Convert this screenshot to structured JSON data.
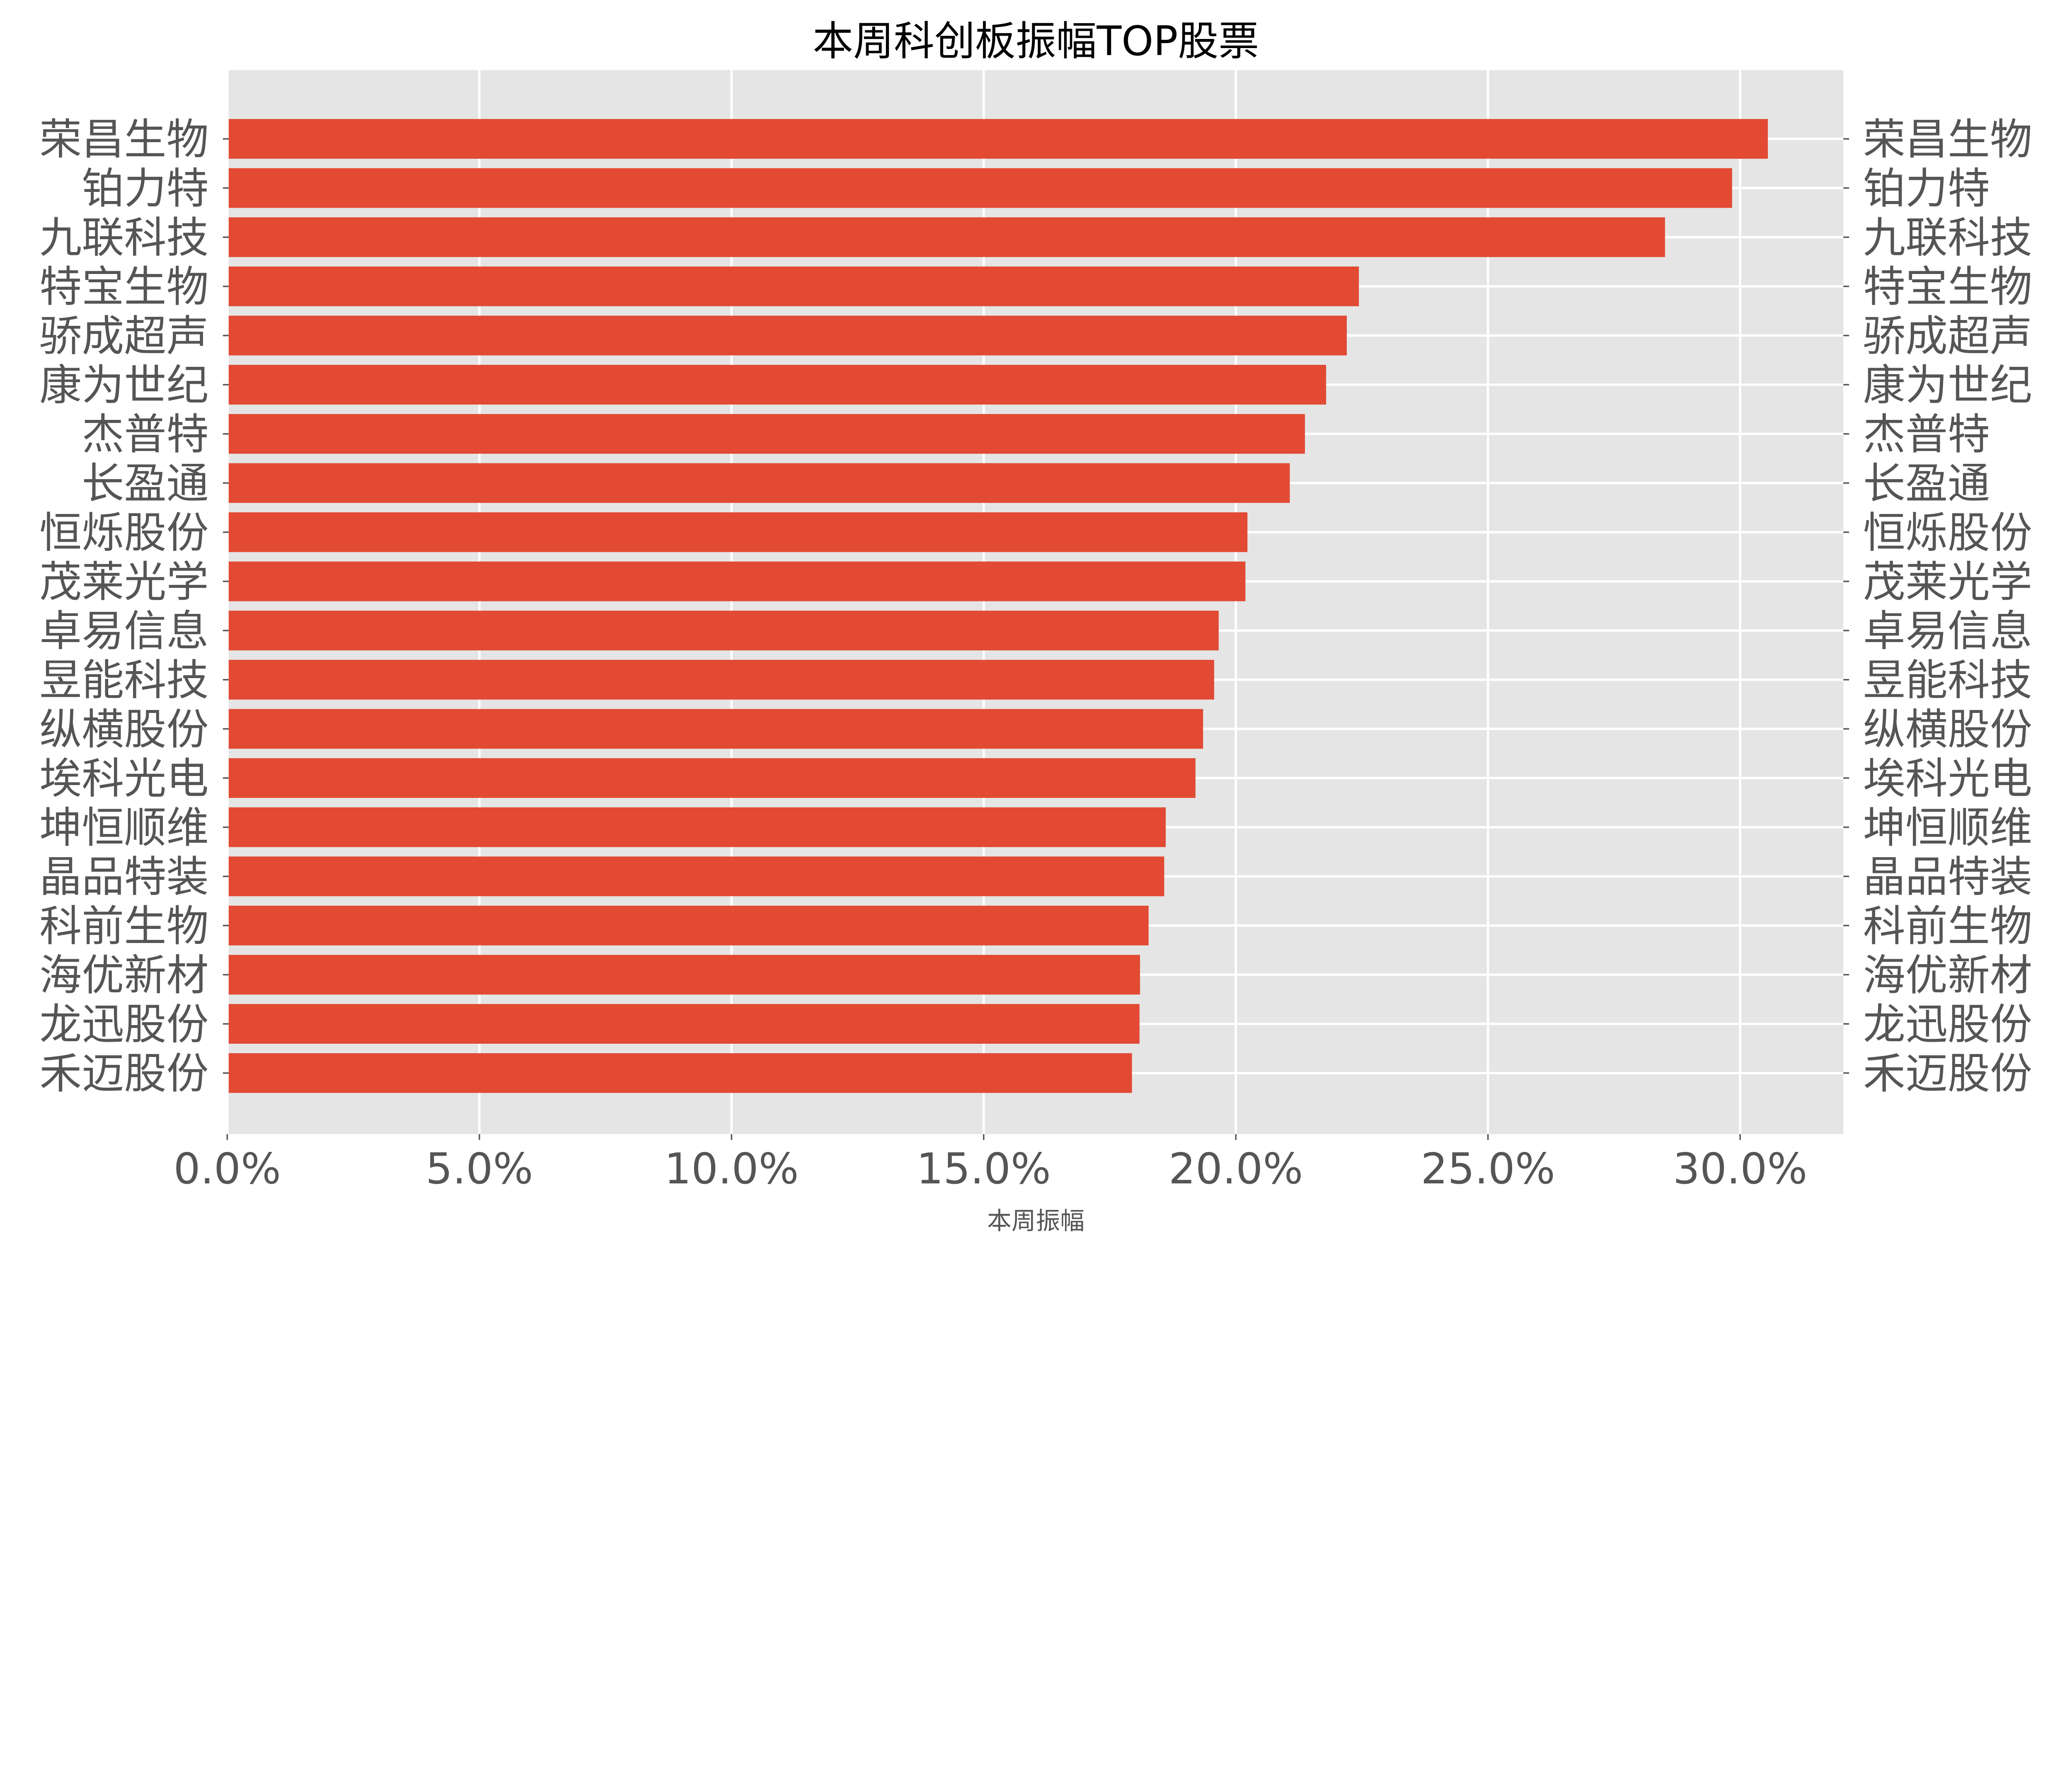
{
  "chart_data": {
    "type": "bar",
    "orientation": "horizontal",
    "title": "本周科创板振幅TOP股票",
    "xlabel": "本周振幅",
    "ylabel": "",
    "xlim": [
      0,
      32
    ],
    "x_ticks": [
      "0.0%",
      "5.0%",
      "10.0%",
      "15.0%",
      "20.0%",
      "25.0%",
      "30.0%"
    ],
    "x_tick_values": [
      0,
      5,
      10,
      15,
      20,
      25,
      30
    ],
    "grid": true,
    "style": "ggplot",
    "bar_color": "#E24A33",
    "background_color": "#E5E5E5",
    "y_labels_both_sides": true,
    "categories": [
      "荣昌生物",
      "铂力特",
      "九联科技",
      "特宝生物",
      "骄成超声",
      "康为世纪",
      "杰普特",
      "长盈通",
      "恒烁股份",
      "茂莱光学",
      "卓易信息",
      "昱能科技",
      "纵横股份",
      "埃科光电",
      "坤恒顺维",
      "晶品特装",
      "科前生物",
      "海优新材",
      "龙迅股份",
      "禾迈股份"
    ],
    "values": [
      30.55,
      29.84,
      28.51,
      22.44,
      22.2,
      21.79,
      21.37,
      21.07,
      20.23,
      20.19,
      19.66,
      19.57,
      19.35,
      19.2,
      18.61,
      18.58,
      18.27,
      18.1,
      18.09,
      17.94
    ]
  }
}
